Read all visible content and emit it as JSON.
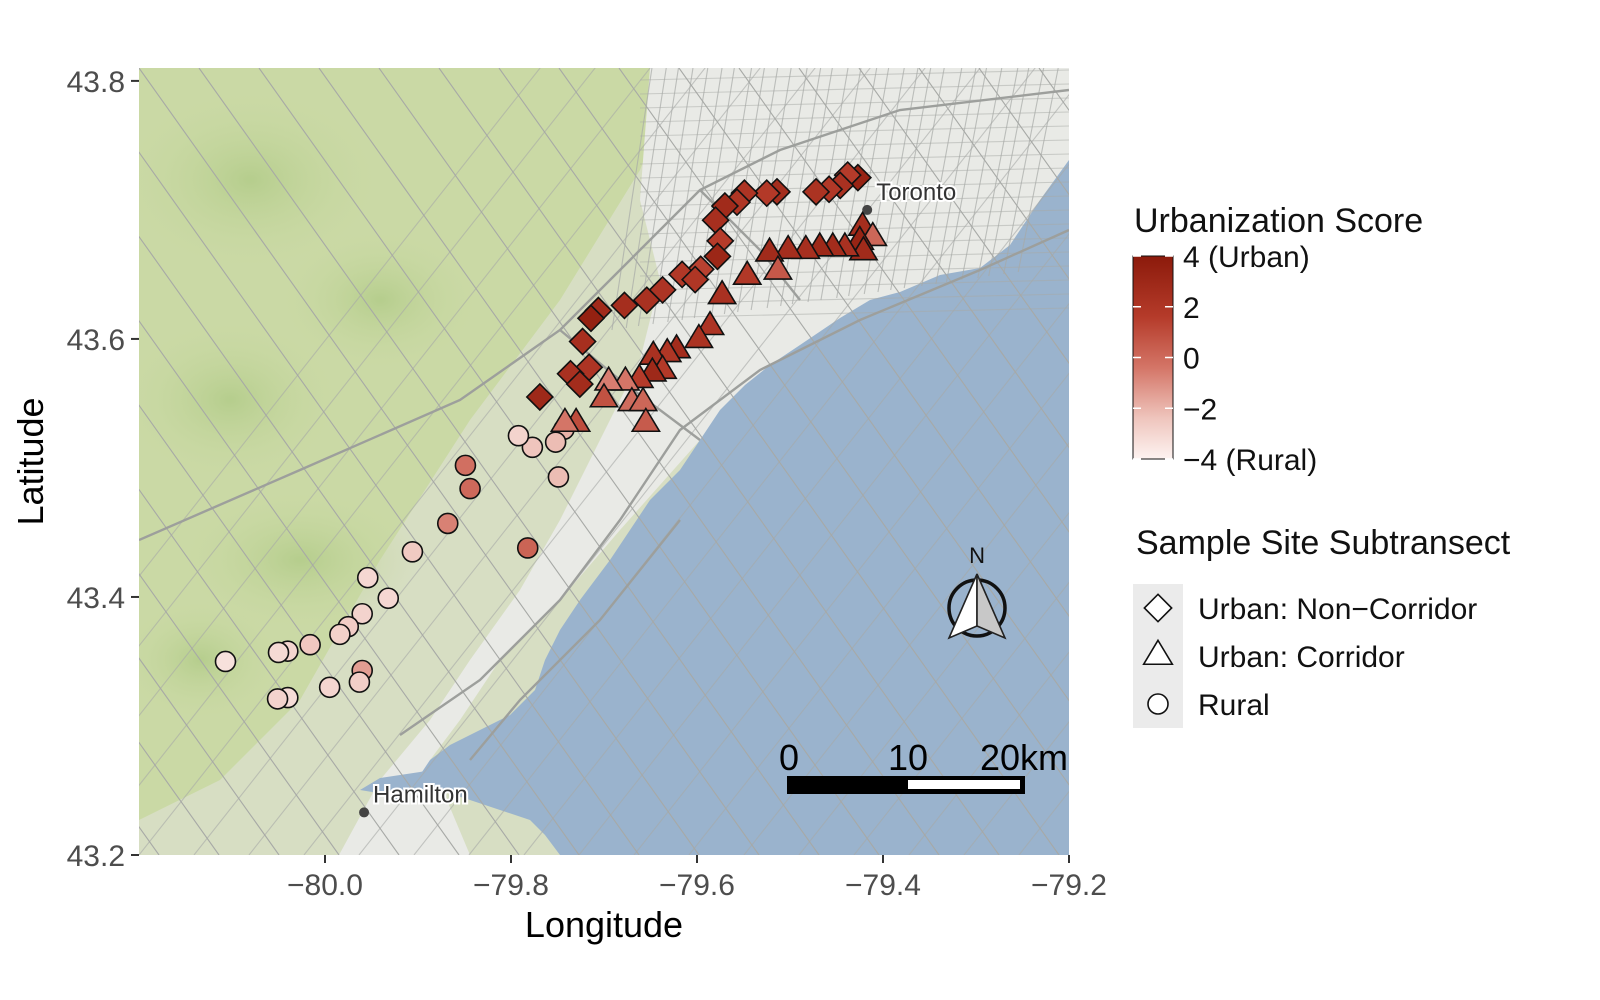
{
  "axes": {
    "xlabel": "Longitude",
    "ylabel": "Latitude",
    "xticks": [
      "−80.0",
      "−79.8",
      "−79.6",
      "−79.4",
      "−79.2"
    ],
    "xtick_values": [
      -80.0,
      -79.8,
      -79.6,
      -79.4,
      -79.2
    ],
    "yticks": [
      "43.2",
      "43.4",
      "43.6",
      "43.8"
    ],
    "ytick_values": [
      43.2,
      43.4,
      43.6,
      43.8
    ],
    "xlim": [
      -80.2,
      -79.2
    ],
    "ylim": [
      43.2,
      43.81
    ]
  },
  "map": {
    "place_labels": [
      {
        "name": "Toronto",
        "lon": -79.417,
        "lat": 43.7
      },
      {
        "name": "Hamilton",
        "lon": -79.958,
        "lat": 43.233
      }
    ],
    "colors": {
      "land": "#dadfcc",
      "urban": "#ebebe9",
      "green": "#c9d9a2",
      "water": "#9ab3cd",
      "road": "#a9aaa8"
    }
  },
  "scale_bar": {
    "labels": [
      "0",
      "10",
      "20km"
    ]
  },
  "north_arrow": {
    "label": "N"
  },
  "legend": {
    "color_title": "Urbanization Score",
    "color_ticks": [
      "4 (Urban)",
      "2",
      "0",
      "−2",
      "−4 (Rural)"
    ],
    "color_tick_values": [
      4,
      2,
      0,
      -2,
      -4
    ],
    "color_range": [
      "#fdf3f1",
      "#8c1a0b"
    ],
    "shape_title": "Sample Site Subtransect",
    "shapes": [
      {
        "label": "Urban: Non−Corridor",
        "shape": "diamond"
      },
      {
        "label": "Urban: Corridor",
        "shape": "triangle"
      },
      {
        "label": "Rural",
        "shape": "circle"
      }
    ]
  },
  "chart_data": {
    "type": "scatter",
    "xlabel": "Longitude",
    "ylabel": "Latitude",
    "xlim": [
      -80.2,
      -79.2
    ],
    "ylim": [
      43.2,
      43.81
    ],
    "color_scale": {
      "min": -4,
      "max": 4,
      "title": "Urbanization Score"
    },
    "series": [
      {
        "name": "Urban: Non−Corridor",
        "shape": "diamond",
        "points": [
          {
            "lon": -79.427,
            "lat": 43.725,
            "score": 3.4
          },
          {
            "lon": -79.438,
            "lat": 43.727,
            "score": 2.0
          },
          {
            "lon": -79.446,
            "lat": 43.719,
            "score": 2.6
          },
          {
            "lon": -79.458,
            "lat": 43.716,
            "score": 2.2
          },
          {
            "lon": -79.472,
            "lat": 43.714,
            "score": 2.5
          },
          {
            "lon": -79.514,
            "lat": 43.714,
            "score": 2.8
          },
          {
            "lon": -79.525,
            "lat": 43.713,
            "score": 2.1
          },
          {
            "lon": -79.549,
            "lat": 43.713,
            "score": 2.4
          },
          {
            "lon": -79.557,
            "lat": 43.706,
            "score": 2.3
          },
          {
            "lon": -79.57,
            "lat": 43.703,
            "score": 3.0
          },
          {
            "lon": -79.58,
            "lat": 43.692,
            "score": 2.7
          },
          {
            "lon": -79.575,
            "lat": 43.676,
            "score": 2.0
          },
          {
            "lon": -79.578,
            "lat": 43.664,
            "score": 3.2
          },
          {
            "lon": -79.596,
            "lat": 43.654,
            "score": 1.8
          },
          {
            "lon": -79.616,
            "lat": 43.65,
            "score": 2.2
          },
          {
            "lon": -79.602,
            "lat": 43.646,
            "score": 2.3
          },
          {
            "lon": -79.637,
            "lat": 43.638,
            "score": 2.4
          },
          {
            "lon": -79.654,
            "lat": 43.63,
            "score": 2.6
          },
          {
            "lon": -79.678,
            "lat": 43.626,
            "score": 2.8
          },
          {
            "lon": -79.706,
            "lat": 43.622,
            "score": 3.0
          },
          {
            "lon": -79.714,
            "lat": 43.616,
            "score": 3.6
          },
          {
            "lon": -79.723,
            "lat": 43.598,
            "score": 2.7
          },
          {
            "lon": -79.716,
            "lat": 43.578,
            "score": 2.4
          },
          {
            "lon": -79.736,
            "lat": 43.573,
            "score": 2.6
          },
          {
            "lon": -79.726,
            "lat": 43.565,
            "score": 2.9
          },
          {
            "lon": -79.769,
            "lat": 43.555,
            "score": 3.1
          }
        ]
      },
      {
        "name": "Urban: Corridor",
        "shape": "triangle",
        "points": [
          {
            "lon": -79.422,
            "lat": 43.688,
            "score": 2.8
          },
          {
            "lon": -79.411,
            "lat": 43.68,
            "score": 0.5
          },
          {
            "lon": -79.425,
            "lat": 43.677,
            "score": 3.4
          },
          {
            "lon": -79.421,
            "lat": 43.669,
            "score": 3.0
          },
          {
            "lon": -79.441,
            "lat": 43.672,
            "score": 2.6
          },
          {
            "lon": -79.454,
            "lat": 43.672,
            "score": 2.9
          },
          {
            "lon": -79.468,
            "lat": 43.672,
            "score": 3.1
          },
          {
            "lon": -79.483,
            "lat": 43.67,
            "score": 2.7
          },
          {
            "lon": -79.502,
            "lat": 43.67,
            "score": 2.8
          },
          {
            "lon": -79.522,
            "lat": 43.668,
            "score": 3.0
          },
          {
            "lon": -79.513,
            "lat": 43.654,
            "score": 1.0
          },
          {
            "lon": -79.546,
            "lat": 43.65,
            "score": 2.2
          },
          {
            "lon": -79.573,
            "lat": 43.635,
            "score": 2.6
          },
          {
            "lon": -79.586,
            "lat": 43.611,
            "score": 2.4
          },
          {
            "lon": -79.598,
            "lat": 43.601,
            "score": 2.5
          },
          {
            "lon": -79.622,
            "lat": 43.593,
            "score": 2.9
          },
          {
            "lon": -79.632,
            "lat": 43.59,
            "score": 2.3
          },
          {
            "lon": -79.647,
            "lat": 43.588,
            "score": 2.6
          },
          {
            "lon": -79.637,
            "lat": 43.577,
            "score": 2.1
          },
          {
            "lon": -79.648,
            "lat": 43.575,
            "score": 3.1
          },
          {
            "lon": -79.662,
            "lat": 43.57,
            "score": 2.0
          },
          {
            "lon": -79.677,
            "lat": 43.568,
            "score": 0.0
          },
          {
            "lon": -79.695,
            "lat": 43.568,
            "score": -0.2
          },
          {
            "lon": -79.67,
            "lat": 43.552,
            "score": 0.3
          },
          {
            "lon": -79.7,
            "lat": 43.555,
            "score": 1.2
          },
          {
            "lon": -79.658,
            "lat": 43.552,
            "score": 0.5
          },
          {
            "lon": -79.655,
            "lat": 43.536,
            "score": 0.9
          },
          {
            "lon": -79.73,
            "lat": 43.536,
            "score": 1.4
          },
          {
            "lon": -79.742,
            "lat": 43.536,
            "score": 0.0
          }
        ]
      },
      {
        "name": "Rural",
        "shape": "circle",
        "points": [
          {
            "lon": -79.743,
            "lat": 43.53,
            "score": -1.5
          },
          {
            "lon": -79.752,
            "lat": 43.52,
            "score": -1.8
          },
          {
            "lon": -79.777,
            "lat": 43.516,
            "score": -2.0
          },
          {
            "lon": -79.792,
            "lat": 43.525,
            "score": -2.6
          },
          {
            "lon": -79.849,
            "lat": 43.502,
            "score": 0.2
          },
          {
            "lon": -79.844,
            "lat": 43.484,
            "score": 0.4
          },
          {
            "lon": -79.749,
            "lat": 43.493,
            "score": -1.8
          },
          {
            "lon": -79.868,
            "lat": 43.457,
            "score": -0.3
          },
          {
            "lon": -79.782,
            "lat": 43.438,
            "score": 0.6
          },
          {
            "lon": -79.906,
            "lat": 43.435,
            "score": -2.2
          },
          {
            "lon": -79.954,
            "lat": 43.415,
            "score": -2.8
          },
          {
            "lon": -79.932,
            "lat": 43.399,
            "score": -2.8
          },
          {
            "lon": -79.96,
            "lat": 43.387,
            "score": -2.6
          },
          {
            "lon": -79.975,
            "lat": 43.377,
            "score": -2.3
          },
          {
            "lon": -79.984,
            "lat": 43.371,
            "score": -2.5
          },
          {
            "lon": -80.016,
            "lat": 43.363,
            "score": -2.1
          },
          {
            "lon": -80.04,
            "lat": 43.358,
            "score": -2.7
          },
          {
            "lon": -80.05,
            "lat": 43.357,
            "score": -2.9
          },
          {
            "lon": -80.107,
            "lat": 43.35,
            "score": -3.2
          },
          {
            "lon": -79.96,
            "lat": 43.343,
            "score": -1.0
          },
          {
            "lon": -79.963,
            "lat": 43.334,
            "score": -2.4
          },
          {
            "lon": -79.995,
            "lat": 43.33,
            "score": -2.7
          },
          {
            "lon": -80.04,
            "lat": 43.322,
            "score": -3.0
          },
          {
            "lon": -80.051,
            "lat": 43.321,
            "score": -2.6
          }
        ]
      }
    ]
  }
}
